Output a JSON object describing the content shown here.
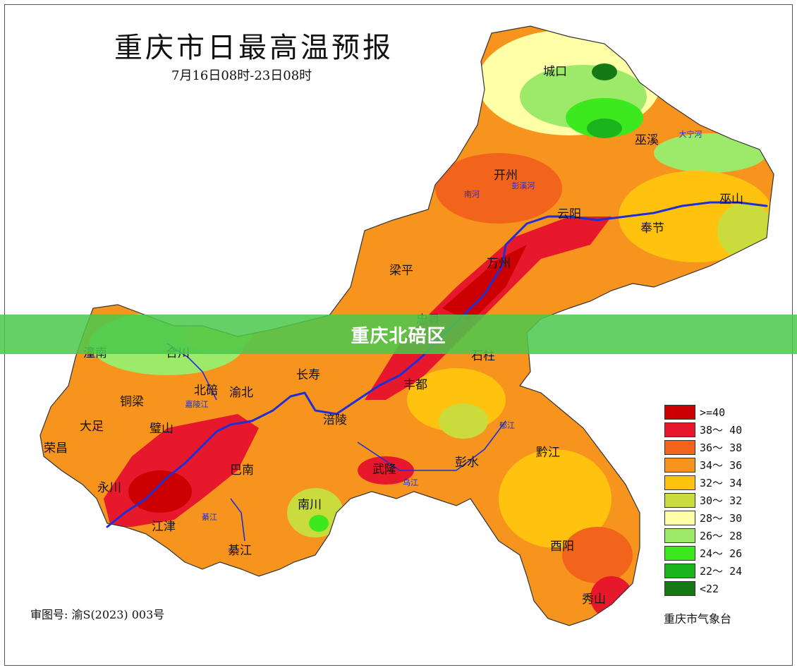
{
  "header": {
    "title": "重庆市日最高温预报",
    "period": "7月16日08时-23日08时"
  },
  "footer": {
    "approval_number": "审图号: 渝S(2023) 003号",
    "agency": "重庆市气象台"
  },
  "banner": {
    "label": "重庆北碚区",
    "color": "#4cc84c"
  },
  "legend": {
    "items": [
      {
        "label": ">=40",
        "color": "#cc0000"
      },
      {
        "label": "38～ 40",
        "color": "#e8182c"
      },
      {
        "label": "36～ 38",
        "color": "#f2641c"
      },
      {
        "label": "34～ 36",
        "color": "#f7941d"
      },
      {
        "label": "32～ 34",
        "color": "#ffc20e"
      },
      {
        "label": "30～ 32",
        "color": "#c9dc3b"
      },
      {
        "label": "28～ 30",
        "color": "#ffffa8"
      },
      {
        "label": "26～ 28",
        "color": "#9dea6b"
      },
      {
        "label": "24～ 26",
        "color": "#3ce81e"
      },
      {
        "label": "22～ 24",
        "color": "#1cb41c"
      },
      {
        "label": "<22",
        "color": "#157a15"
      }
    ]
  },
  "map": {
    "districts": [
      {
        "name": "城口"
      },
      {
        "name": "巫溪"
      },
      {
        "name": "开州"
      },
      {
        "name": "云阳"
      },
      {
        "name": "巫山"
      },
      {
        "name": "奉节"
      },
      {
        "name": "梁平"
      },
      {
        "name": "万州"
      },
      {
        "name": "忠县"
      },
      {
        "name": "石柱"
      },
      {
        "name": "潼南"
      },
      {
        "name": "合川"
      },
      {
        "name": "长寿"
      },
      {
        "name": "丰都"
      },
      {
        "name": "铜梁"
      },
      {
        "name": "北碚"
      },
      {
        "name": "渝北"
      },
      {
        "name": "涪陵"
      },
      {
        "name": "大足"
      },
      {
        "name": "璧山"
      },
      {
        "name": "荣昌"
      },
      {
        "name": "巴南"
      },
      {
        "name": "武隆"
      },
      {
        "name": "彭水"
      },
      {
        "name": "黔江"
      },
      {
        "name": "永川"
      },
      {
        "name": "南川"
      },
      {
        "name": "江津"
      },
      {
        "name": "綦江"
      },
      {
        "name": "酉阳"
      },
      {
        "name": "秀山"
      }
    ],
    "rivers": [
      {
        "name": "大宁河"
      },
      {
        "name": "南河"
      },
      {
        "name": "彭溪河"
      },
      {
        "name": "乌江"
      },
      {
        "name": "嘉陵江"
      },
      {
        "name": "綦江"
      },
      {
        "name": "郁江"
      }
    ],
    "river_color": "#1f2fd6"
  }
}
